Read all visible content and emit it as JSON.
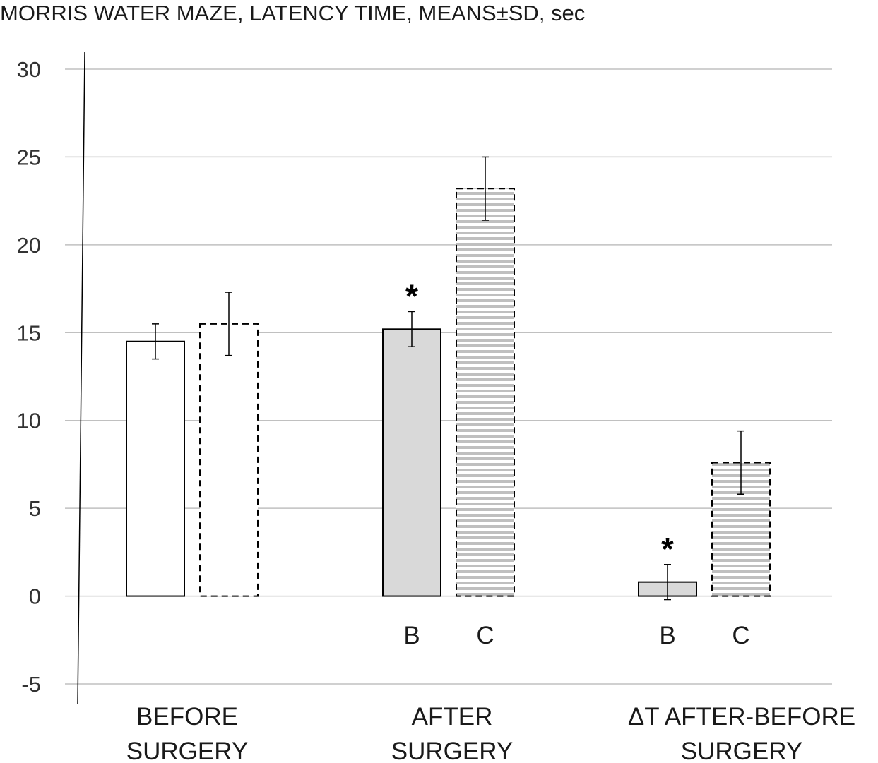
{
  "chart_data": {
    "type": "bar",
    "title": "MORRIS WATER MAZE, LATENCY TIME, MEANS±SD, sec",
    "ylim": [
      -5,
      30
    ],
    "yticks": [
      30,
      25,
      20,
      15,
      10,
      5,
      0,
      -5
    ],
    "ytick_labels": [
      "30",
      "25",
      "20",
      "15",
      "10",
      "5",
      "0",
      "-5"
    ],
    "grid": true,
    "categories": [
      [
        "BEFORE",
        "SURGERY"
      ],
      [
        "AFTER",
        "SURGERY"
      ],
      [
        "ΔT AFTER-BEFORE",
        "SURGERY"
      ]
    ],
    "series": [
      {
        "bar_labels": [
          "",
          "B",
          "B"
        ],
        "values": [
          14.5,
          15.2,
          0.8
        ],
        "sd": [
          1.0,
          1.0,
          1.0
        ],
        "significance": [
          "",
          "*",
          "*"
        ],
        "styles": [
          "white-solid",
          "gray-solid",
          "gray-solid"
        ]
      },
      {
        "bar_labels": [
          "",
          "C",
          "C"
        ],
        "values": [
          15.5,
          23.2,
          7.6
        ],
        "sd": [
          1.8,
          1.8,
          1.8
        ],
        "significance": [
          "",
          "",
          ""
        ],
        "styles": [
          "white-dashed",
          "hatched-dashed",
          "hatched-dashed"
        ]
      }
    ],
    "colors": {
      "gray_fill": "#d9d9d9",
      "hatch_line": "#bfbfbf",
      "grid": "#c0c0c0",
      "bar_border": "#000000"
    }
  }
}
